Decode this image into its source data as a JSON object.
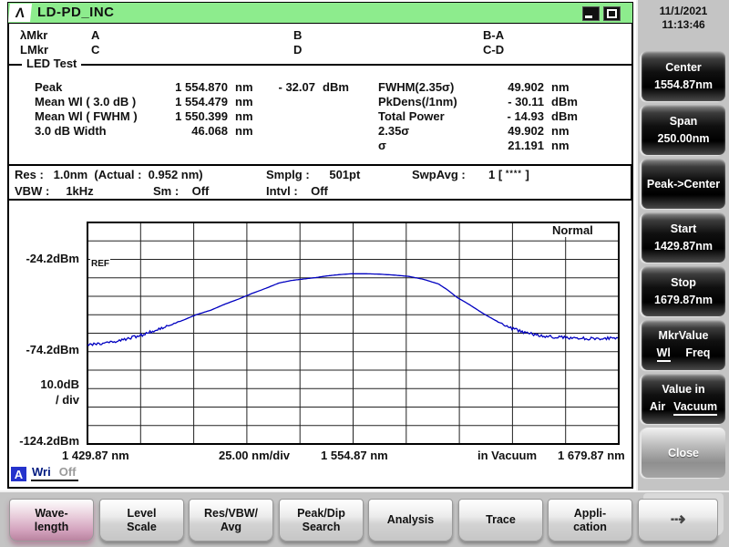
{
  "titlebar": {
    "title": "LD-PD_INC",
    "logo_glyph": "Λ"
  },
  "datetime": {
    "date": "11/1/2021",
    "time": "11:13:46"
  },
  "markers": {
    "row1_label": "λMkr",
    "a": "A",
    "b": "B",
    "ba": "B-A",
    "row2_label": "LMkr",
    "c": "C",
    "d": "D",
    "cd": "C-D"
  },
  "section_label": "LED Test",
  "analysis": {
    "left": [
      {
        "label": "Peak",
        "value": "1 554.870",
        "unit": "nm",
        "extra_value": "- 32.07",
        "extra_unit": "dBm"
      },
      {
        "label": "Mean Wl ( 3.0 dB )",
        "value": "1 554.479",
        "unit": "nm",
        "extra_value": "",
        "extra_unit": ""
      },
      {
        "label": "Mean Wl ( FWHM )",
        "value": "1 550.399",
        "unit": "nm",
        "extra_value": "",
        "extra_unit": ""
      },
      {
        "label": "3.0   dB Width",
        "value": "46.068",
        "unit": "nm",
        "extra_value": "",
        "extra_unit": ""
      }
    ],
    "right": [
      {
        "label": "FWHM(2.35σ)",
        "value": "49.902",
        "unit": "nm"
      },
      {
        "label": "PkDens(/1nm)",
        "value": "- 30.11",
        "unit": "dBm"
      },
      {
        "label": "Total Power",
        "value": "- 14.93",
        "unit": "dBm"
      },
      {
        "label": "2.35σ",
        "value": "49.902",
        "unit": "nm"
      },
      {
        "label": "σ",
        "value": "21.191",
        "unit": "nm"
      }
    ]
  },
  "settings": {
    "res": "Res :   1.0nm  (Actual :  0.952 nm)",
    "smplg": "Smplg :      501pt",
    "swpavg_prefix": "SwpAvg :       1 [ ",
    "swpavg_stars": "****",
    "swpavg_suffix": " ]",
    "vbw": "VBW :     1kHz",
    "sm": "Sm :    Off",
    "intvl": "Intvl :    Off"
  },
  "chart_data": {
    "type": "line",
    "title": "LED optical spectrum trace",
    "mode_label": "Normal",
    "ref_label": "REF",
    "grid": {
      "rows": 12,
      "cols": 10,
      "on": true
    },
    "y_axis": {
      "labels": [
        "-24.2dBm",
        "-74.2dBm",
        "10.0dB",
        "/ div",
        "-124.2dBm"
      ],
      "ref_dbm": -24.2,
      "db_per_div": 10,
      "top_dbm": -4.2,
      "bottom_dbm": -124.2
    },
    "x_axis": {
      "labels": [
        "1 429.87 nm",
        "25.00 nm/div",
        "1 554.87 nm",
        "in Vacuum",
        "1 679.87 nm"
      ],
      "start_nm": 1429.87,
      "stop_nm": 1679.87,
      "nm_per_div": 25
    },
    "series": [
      {
        "name": "A",
        "color": "#0000c0",
        "points_nm_dbm": [
          [
            1429.9,
            -70.3
          ],
          [
            1436,
            -70.0
          ],
          [
            1443,
            -68.8
          ],
          [
            1449,
            -67.0
          ],
          [
            1456,
            -65.0
          ],
          [
            1462,
            -62.6
          ],
          [
            1469,
            -59.6
          ],
          [
            1475,
            -57.1
          ],
          [
            1481,
            -54.2
          ],
          [
            1488,
            -51.7
          ],
          [
            1494,
            -48.7
          ],
          [
            1501,
            -45.7
          ],
          [
            1507,
            -42.8
          ],
          [
            1514,
            -39.8
          ],
          [
            1520,
            -37.0
          ],
          [
            1526,
            -35.6
          ],
          [
            1531,
            -34.9
          ],
          [
            1537,
            -34.1
          ],
          [
            1543,
            -33.1
          ],
          [
            1549,
            -32.4
          ],
          [
            1554,
            -32.0
          ],
          [
            1561,
            -32.0
          ],
          [
            1567,
            -32.2
          ],
          [
            1574,
            -32.7
          ],
          [
            1581,
            -33.4
          ],
          [
            1588,
            -35.0
          ],
          [
            1595,
            -37.5
          ],
          [
            1599,
            -40.5
          ],
          [
            1604,
            -45.0
          ],
          [
            1608,
            -47.6
          ],
          [
            1612,
            -50.5
          ],
          [
            1616,
            -53.5
          ],
          [
            1623,
            -58.0
          ],
          [
            1629,
            -61.5
          ],
          [
            1636,
            -63.8
          ],
          [
            1642,
            -65.3
          ],
          [
            1649,
            -66.2
          ],
          [
            1657,
            -66.8
          ],
          [
            1666,
            -67.1
          ],
          [
            1674,
            -66.9
          ],
          [
            1679.9,
            -67.2
          ]
        ]
      }
    ],
    "noise": {
      "amplitude_db": 0.8,
      "applies_below_dbm": -57
    }
  },
  "trace_status": {
    "trace": "A",
    "mode": "Wri",
    "state": "Off"
  },
  "softkeys": [
    {
      "name": "center",
      "style": "dark",
      "lines": [
        "Center",
        "1554.87nm"
      ]
    },
    {
      "name": "span",
      "style": "dark",
      "lines": [
        "Span",
        "250.00nm"
      ]
    },
    {
      "name": "peak-to-center",
      "style": "dark",
      "lines": [
        "Peak->Center"
      ]
    },
    {
      "name": "start",
      "style": "dark",
      "lines": [
        "Start",
        "1429.87nm"
      ]
    },
    {
      "name": "stop",
      "style": "dark",
      "lines": [
        "Stop",
        "1679.87nm"
      ]
    },
    {
      "name": "mkr-value",
      "style": "dark",
      "title": "MkrValue",
      "options": [
        {
          "label": "Wl",
          "selected": true
        },
        {
          "label": "Freq",
          "selected": false
        }
      ]
    },
    {
      "name": "value-in",
      "style": "dark",
      "title": "Value in",
      "options": [
        {
          "label": "Air",
          "selected": false
        },
        {
          "label": "Vacuum",
          "selected": true
        }
      ]
    },
    {
      "name": "close",
      "style": "light",
      "lines": [
        "Close"
      ]
    }
  ],
  "function_keys": [
    {
      "name": "wavelength",
      "lines": [
        "Wave-",
        "length"
      ],
      "selected": true
    },
    {
      "name": "level-scale",
      "lines": [
        "Level",
        "Scale"
      ],
      "selected": false
    },
    {
      "name": "res-vbw-avg",
      "lines": [
        "Res/VBW/",
        "Avg"
      ],
      "selected": false
    },
    {
      "name": "peak-dip-search",
      "lines": [
        "Peak/Dip",
        "Search"
      ],
      "selected": false
    },
    {
      "name": "analysis",
      "lines": [
        "Analysis"
      ],
      "selected": false
    },
    {
      "name": "trace",
      "lines": [
        "Trace"
      ],
      "selected": false
    },
    {
      "name": "application",
      "lines": [
        "Appli-",
        "cation"
      ],
      "selected": false
    },
    {
      "name": "more",
      "lines": [
        "⇢"
      ],
      "selected": false,
      "is_arrow": true
    }
  ],
  "colors": {
    "titlebar_green": "#8dec8d",
    "trace_blue": "#0000c0",
    "selected_key_pink": "#d3a2bd",
    "panel_gray": "#c4c4c4"
  }
}
